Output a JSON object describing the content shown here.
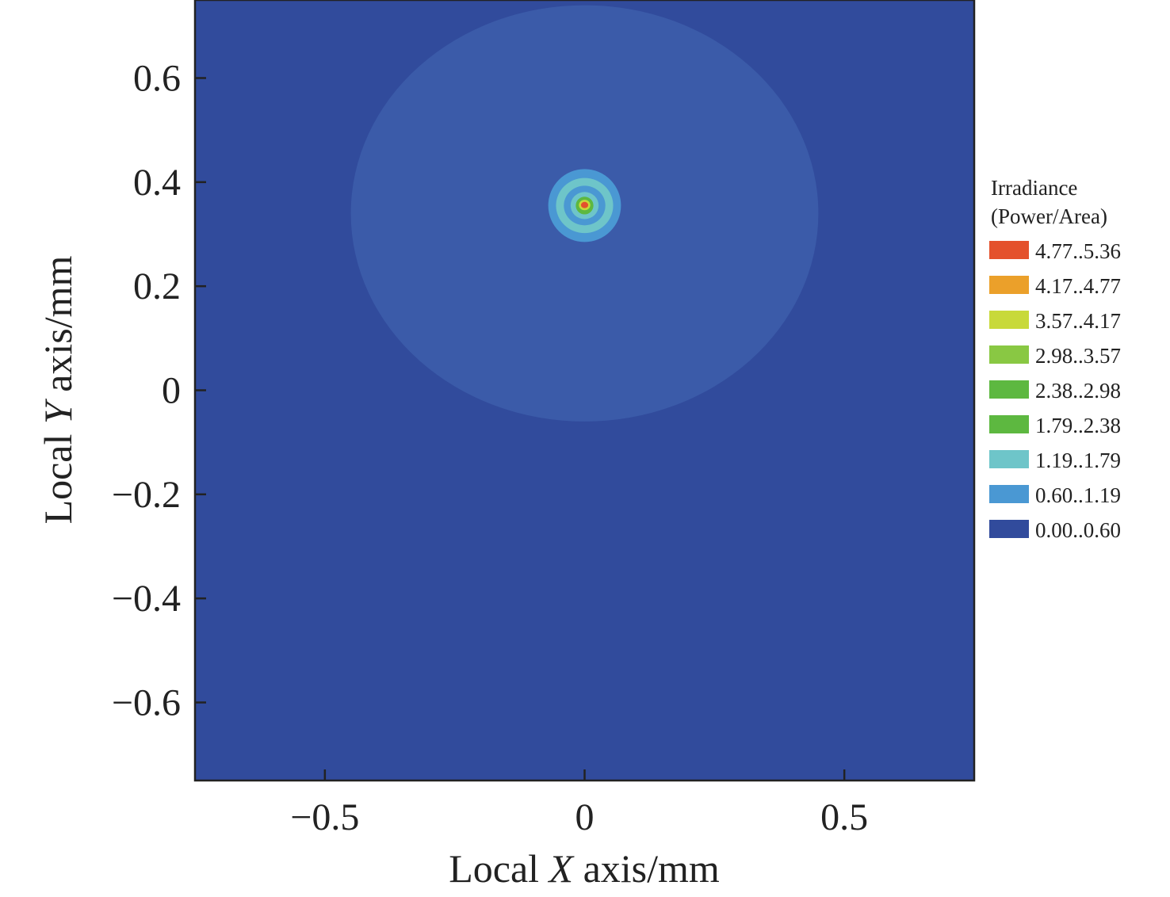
{
  "chart_data": {
    "type": "heatmap",
    "title": "",
    "x_axis": {
      "label_prefix": "Local ",
      "label_var": "X",
      "label_suffix": " axis/mm",
      "range": [
        -0.75,
        0.75
      ],
      "ticks": [
        {
          "value": -0.5,
          "label": "−0.5"
        },
        {
          "value": 0,
          "label": "0"
        },
        {
          "value": 0.5,
          "label": "0.5"
        }
      ]
    },
    "y_axis": {
      "label_prefix": "Local ",
      "label_var": "Y",
      "label_suffix": " axis/mm",
      "range": [
        -0.75,
        0.75
      ],
      "ticks": [
        {
          "value": 0.6,
          "label": "0.6"
        },
        {
          "value": 0.4,
          "label": "0.4"
        },
        {
          "value": 0.2,
          "label": "0.2"
        },
        {
          "value": 0,
          "label": "0"
        },
        {
          "value": -0.2,
          "label": "−0.2"
        },
        {
          "value": -0.4,
          "label": "−0.4"
        },
        {
          "value": -0.6,
          "label": "−0.6"
        }
      ]
    },
    "background_color": "#314b9c",
    "regions": [
      {
        "shape": "ellipse",
        "cx": 0.0,
        "cy": 0.34,
        "rx": 0.45,
        "ry": 0.4,
        "color": "#3b5ba9"
      },
      {
        "shape": "ellipse",
        "cx": 0.0,
        "cy": 0.355,
        "rx": 0.07,
        "ry": 0.07,
        "color": "#4a98d3"
      },
      {
        "shape": "ellipse",
        "cx": 0.0,
        "cy": 0.355,
        "rx": 0.055,
        "ry": 0.053,
        "color": "#6ec5c9"
      },
      {
        "shape": "ellipse",
        "cx": 0.0,
        "cy": 0.355,
        "rx": 0.04,
        "ry": 0.038,
        "color": "#4a98d3"
      },
      {
        "shape": "ellipse",
        "cx": 0.0,
        "cy": 0.355,
        "rx": 0.027,
        "ry": 0.026,
        "color": "#6ec5c9"
      },
      {
        "shape": "ellipse",
        "cx": 0.0,
        "cy": 0.355,
        "rx": 0.017,
        "ry": 0.017,
        "color": "#5db840"
      },
      {
        "shape": "ellipse",
        "cx": 0.0,
        "cy": 0.356,
        "rx": 0.011,
        "ry": 0.01,
        "color": "#c8d93a"
      },
      {
        "shape": "ellipse",
        "cx": 0.0,
        "cy": 0.356,
        "rx": 0.007,
        "ry": 0.006,
        "color": "#e4512c"
      }
    ],
    "legend": {
      "position": "right",
      "title_line1": "Irradiance",
      "title_line2": "(Power/Area)",
      "items": [
        {
          "label": "4.77..5.36",
          "color": "#e4512c"
        },
        {
          "label": "4.17..4.77",
          "color": "#eba02a"
        },
        {
          "label": "3.57..4.17",
          "color": "#c8d93a"
        },
        {
          "label": "2.98..3.57",
          "color": "#89c843"
        },
        {
          "label": "2.38..2.98",
          "color": "#5db840"
        },
        {
          "label": "1.79..2.38",
          "color": "#5db840"
        },
        {
          "label": "1.19..1.79",
          "color": "#6ec5c9"
        },
        {
          "label": "0.60..1.19",
          "color": "#4a98d3"
        },
        {
          "label": "0.00..0.60",
          "color": "#314b9c"
        }
      ]
    }
  }
}
